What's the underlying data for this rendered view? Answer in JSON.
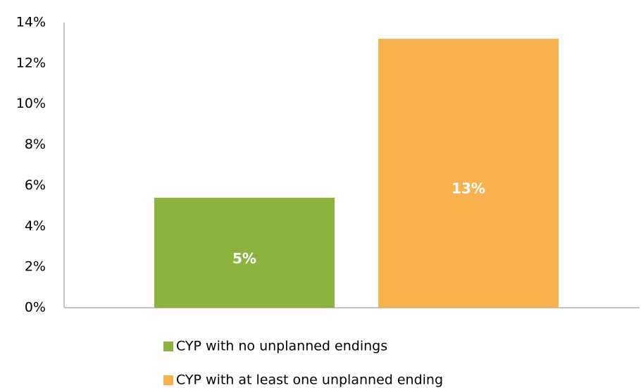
{
  "chart_data": {
    "type": "bar",
    "categories": [
      null
    ],
    "series": [
      {
        "name": "CYP with no unplanned endings",
        "color": "#8db33f",
        "values": [
          5.4
        ],
        "value_labels": [
          "5%"
        ]
      },
      {
        "name": "CYP with at least one unplanned ending",
        "color": "#f7b24f",
        "values": [
          13.2
        ],
        "value_labels": [
          "13%"
        ]
      }
    ],
    "ylim": [
      0,
      14
    ],
    "yticks": [
      {
        "value": 0,
        "label": "0%"
      },
      {
        "value": 2,
        "label": "2%"
      },
      {
        "value": 4,
        "label": "4%"
      },
      {
        "value": 6,
        "label": "6%"
      },
      {
        "value": 8,
        "label": "8%"
      },
      {
        "value": 10,
        "label": "10%"
      },
      {
        "value": 12,
        "label": "12%"
      },
      {
        "value": 14,
        "label": "14%"
      }
    ],
    "grid": false,
    "legend": "bottom"
  }
}
